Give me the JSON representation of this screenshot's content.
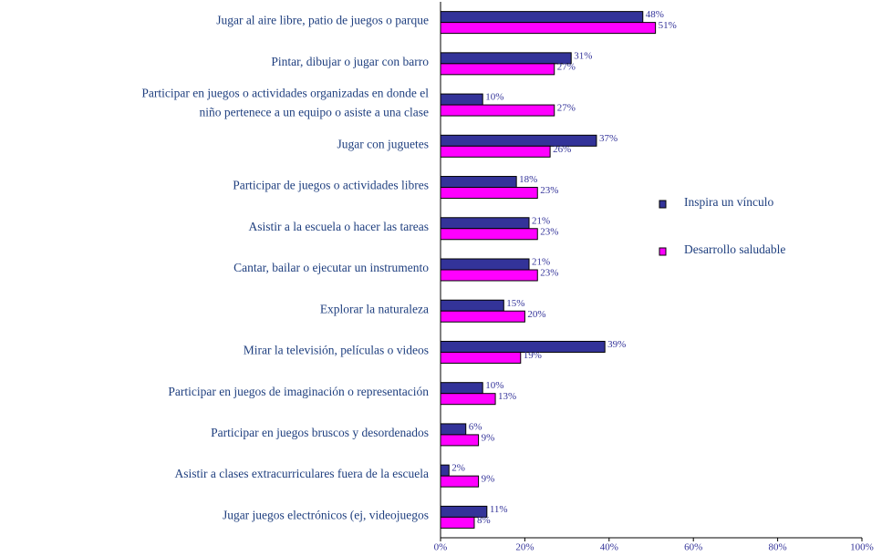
{
  "chart_data": {
    "type": "bar",
    "orientation": "horizontal",
    "categories": [
      "Jugar al aire libre, patio de juegos o parque",
      "Pintar, dibujar o jugar con barro",
      "Participar en juegos o actividades organizadas en donde el\nniño pertenece a un equipo o asiste a una clase",
      "Jugar con juguetes",
      "Participar de juegos o actividades libres",
      "Asistir a la escuela o hacer las tareas",
      "Cantar, bailar o ejecutar un instrumento",
      "Explorar la naturaleza",
      "Mirar la televisión, películas o videos",
      "Participar en juegos de imaginación o representación",
      "Participar en juegos bruscos y desordenados",
      "Asistir a clases extracurriculares fuera de la escuela",
      "Jugar juegos electrónicos (ej, videojuegos"
    ],
    "series": [
      {
        "name": "Inspira un vínculo",
        "color": "#333399",
        "values": [
          48,
          31,
          10,
          37,
          18,
          21,
          21,
          15,
          39,
          10,
          6,
          2,
          11
        ],
        "value_labels": [
          "48%",
          "31%",
          "10%",
          "37%",
          "18%",
          "21%",
          "21%",
          "15%",
          "39%",
          "10%",
          "6%",
          "2%",
          "11%"
        ]
      },
      {
        "name": "Desarrollo saludable",
        "color": "#ff00ff",
        "values": [
          51,
          27,
          27,
          26,
          23,
          23,
          23,
          20,
          19,
          13,
          9,
          9,
          8
        ],
        "value_labels": [
          "51%",
          "27%",
          "27%",
          "26%",
          "23%",
          "23%",
          "23%",
          "20%",
          "19%",
          "13%",
          "9%",
          "9%",
          "8%"
        ]
      }
    ],
    "xlim": [
      0,
      100
    ],
    "xticks": [
      {
        "value": 0,
        "label": "0%"
      },
      {
        "value": 20,
        "label": "20%"
      },
      {
        "value": 40,
        "label": "40%"
      },
      {
        "value": 60,
        "label": "60%"
      },
      {
        "value": 80,
        "label": "80%"
      },
      {
        "value": 100,
        "label": "100%"
      }
    ],
    "legend": "right"
  }
}
